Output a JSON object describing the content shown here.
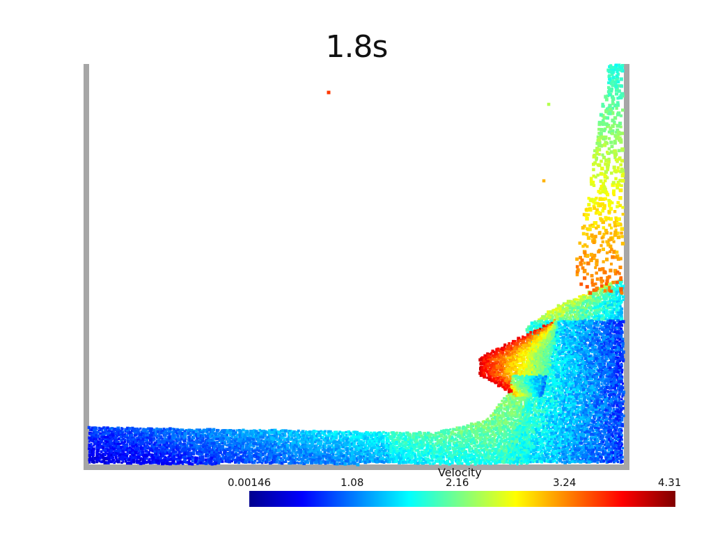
{
  "title": "1.8s",
  "colorbar": {
    "title": "Velocity",
    "tick_labels": [
      "0.00146",
      "1.08",
      "2.16",
      "3.24",
      "4.31"
    ],
    "colormap": "jet",
    "colors": [
      "#00008f",
      "#0000ff",
      "#0080ff",
      "#00ffff",
      "#80ff80",
      "#ffff00",
      "#ff8000",
      "#ff0000",
      "#800000"
    ]
  },
  "scene": {
    "wall_color": "#a6a6a6",
    "background": "#ffffff"
  }
}
